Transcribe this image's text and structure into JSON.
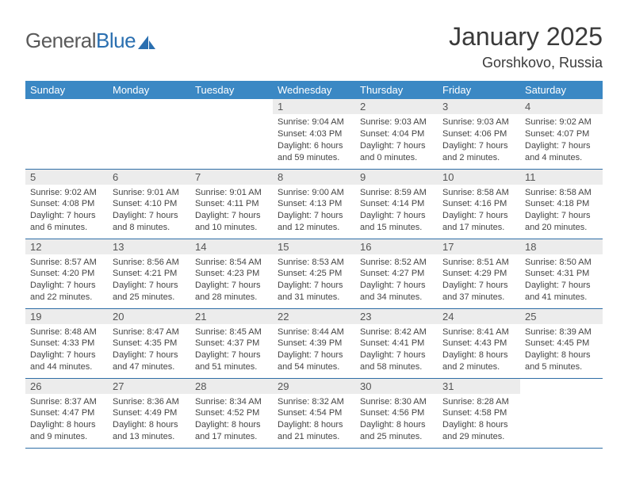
{
  "brand": {
    "part1": "General",
    "part2": "Blue"
  },
  "title": "January 2025",
  "location": "Gorshkovo, Russia",
  "colors": {
    "header_bg": "#3b88c4",
    "header_fg": "#ffffff",
    "daynum_bg": "#ececec",
    "row_border": "#2f6ea6",
    "text": "#3a3a3a",
    "logo_gray": "#5a5a5a",
    "logo_blue": "#2a6fb0"
  },
  "weekdays": [
    "Sunday",
    "Monday",
    "Tuesday",
    "Wednesday",
    "Thursday",
    "Friday",
    "Saturday"
  ],
  "weeks": [
    [
      null,
      null,
      null,
      {
        "n": "1",
        "sr": "9:04 AM",
        "ss": "4:03 PM",
        "dl": "6 hours and 59 minutes."
      },
      {
        "n": "2",
        "sr": "9:03 AM",
        "ss": "4:04 PM",
        "dl": "7 hours and 0 minutes."
      },
      {
        "n": "3",
        "sr": "9:03 AM",
        "ss": "4:06 PM",
        "dl": "7 hours and 2 minutes."
      },
      {
        "n": "4",
        "sr": "9:02 AM",
        "ss": "4:07 PM",
        "dl": "7 hours and 4 minutes."
      }
    ],
    [
      {
        "n": "5",
        "sr": "9:02 AM",
        "ss": "4:08 PM",
        "dl": "7 hours and 6 minutes."
      },
      {
        "n": "6",
        "sr": "9:01 AM",
        "ss": "4:10 PM",
        "dl": "7 hours and 8 minutes."
      },
      {
        "n": "7",
        "sr": "9:01 AM",
        "ss": "4:11 PM",
        "dl": "7 hours and 10 minutes."
      },
      {
        "n": "8",
        "sr": "9:00 AM",
        "ss": "4:13 PM",
        "dl": "7 hours and 12 minutes."
      },
      {
        "n": "9",
        "sr": "8:59 AM",
        "ss": "4:14 PM",
        "dl": "7 hours and 15 minutes."
      },
      {
        "n": "10",
        "sr": "8:58 AM",
        "ss": "4:16 PM",
        "dl": "7 hours and 17 minutes."
      },
      {
        "n": "11",
        "sr": "8:58 AM",
        "ss": "4:18 PM",
        "dl": "7 hours and 20 minutes."
      }
    ],
    [
      {
        "n": "12",
        "sr": "8:57 AM",
        "ss": "4:20 PM",
        "dl": "7 hours and 22 minutes."
      },
      {
        "n": "13",
        "sr": "8:56 AM",
        "ss": "4:21 PM",
        "dl": "7 hours and 25 minutes."
      },
      {
        "n": "14",
        "sr": "8:54 AM",
        "ss": "4:23 PM",
        "dl": "7 hours and 28 minutes."
      },
      {
        "n": "15",
        "sr": "8:53 AM",
        "ss": "4:25 PM",
        "dl": "7 hours and 31 minutes."
      },
      {
        "n": "16",
        "sr": "8:52 AM",
        "ss": "4:27 PM",
        "dl": "7 hours and 34 minutes."
      },
      {
        "n": "17",
        "sr": "8:51 AM",
        "ss": "4:29 PM",
        "dl": "7 hours and 37 minutes."
      },
      {
        "n": "18",
        "sr": "8:50 AM",
        "ss": "4:31 PM",
        "dl": "7 hours and 41 minutes."
      }
    ],
    [
      {
        "n": "19",
        "sr": "8:48 AM",
        "ss": "4:33 PM",
        "dl": "7 hours and 44 minutes."
      },
      {
        "n": "20",
        "sr": "8:47 AM",
        "ss": "4:35 PM",
        "dl": "7 hours and 47 minutes."
      },
      {
        "n": "21",
        "sr": "8:45 AM",
        "ss": "4:37 PM",
        "dl": "7 hours and 51 minutes."
      },
      {
        "n": "22",
        "sr": "8:44 AM",
        "ss": "4:39 PM",
        "dl": "7 hours and 54 minutes."
      },
      {
        "n": "23",
        "sr": "8:42 AM",
        "ss": "4:41 PM",
        "dl": "7 hours and 58 minutes."
      },
      {
        "n": "24",
        "sr": "8:41 AM",
        "ss": "4:43 PM",
        "dl": "8 hours and 2 minutes."
      },
      {
        "n": "25",
        "sr": "8:39 AM",
        "ss": "4:45 PM",
        "dl": "8 hours and 5 minutes."
      }
    ],
    [
      {
        "n": "26",
        "sr": "8:37 AM",
        "ss": "4:47 PM",
        "dl": "8 hours and 9 minutes."
      },
      {
        "n": "27",
        "sr": "8:36 AM",
        "ss": "4:49 PM",
        "dl": "8 hours and 13 minutes."
      },
      {
        "n": "28",
        "sr": "8:34 AM",
        "ss": "4:52 PM",
        "dl": "8 hours and 17 minutes."
      },
      {
        "n": "29",
        "sr": "8:32 AM",
        "ss": "4:54 PM",
        "dl": "8 hours and 21 minutes."
      },
      {
        "n": "30",
        "sr": "8:30 AM",
        "ss": "4:56 PM",
        "dl": "8 hours and 25 minutes."
      },
      {
        "n": "31",
        "sr": "8:28 AM",
        "ss": "4:58 PM",
        "dl": "8 hours and 29 minutes."
      },
      null
    ]
  ],
  "labels": {
    "sunrise": "Sunrise: ",
    "sunset": "Sunset: ",
    "daylight": "Daylight: "
  }
}
